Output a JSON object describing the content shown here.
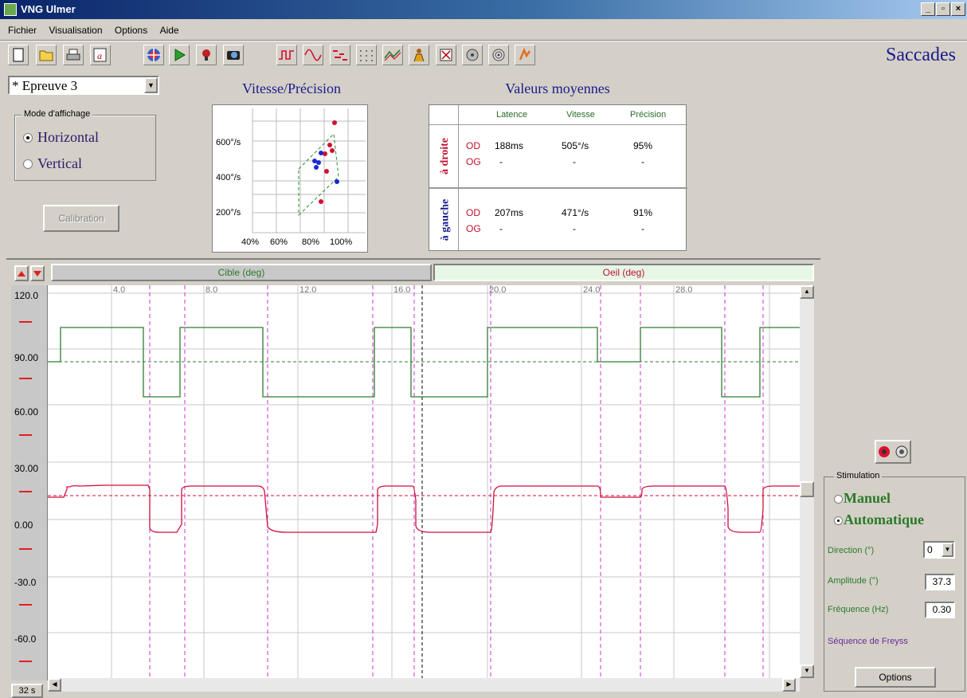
{
  "window": {
    "title": "VNG Ulmer",
    "min": "_",
    "max": "▫",
    "close": "×"
  },
  "menu": [
    "Fichier",
    "Visualisation",
    "Options",
    "Aide"
  ],
  "page_heading": "Saccades",
  "test_select": {
    "value": "* Epreuve 3"
  },
  "display_mode": {
    "legend": "Mode d'affichage",
    "horizontal": "Horizontal",
    "vertical": "Vertical",
    "selected": "horizontal"
  },
  "calibration_button": "Calibration",
  "speed_precision": {
    "title": "Vitesse/Précision",
    "y_ticks": [
      "600°/s",
      "400°/s",
      "200°/s"
    ],
    "x_ticks": [
      "40%",
      "60%",
      "80%",
      "100%"
    ]
  },
  "mean_values": {
    "title": "Valeurs moyennes",
    "headers": [
      "Latence",
      "Vitesse",
      "Précision"
    ],
    "right_label": "à droite",
    "left_label": "à gauche",
    "rows_right": [
      {
        "eye": "OD",
        "latence": "188ms",
        "vitesse": "505°/s",
        "precision": "95%"
      },
      {
        "eye": "OG",
        "latence": "-",
        "vitesse": "-",
        "precision": "-"
      }
    ],
    "rows_left": [
      {
        "eye": "OD",
        "latence": "207ms",
        "vitesse": "471°/s",
        "precision": "91%"
      },
      {
        "eye": "OG",
        "latence": "-",
        "vitesse": "-",
        "precision": "-"
      }
    ]
  },
  "trace_tabs": {
    "target": "Cible (deg)",
    "eye": "Oeil (deg)"
  },
  "trace_axis": {
    "y_labels": [
      "120.0",
      "90.00",
      "60.00",
      "30.00",
      "0.00",
      "-30.0",
      "-60.0"
    ],
    "x_labels": [
      "4.0",
      "8.0",
      "12.0",
      "16.0",
      "20.0",
      "24.0",
      "28.0"
    ],
    "time_window": "32 s"
  },
  "stimulation": {
    "legend": "Stimulation",
    "manual": "Manuel",
    "automatic": "Automatique",
    "selected": "automatique",
    "direction_label": "Direction (°)",
    "direction_value": "0",
    "amplitude_label": "Amplitude (°)",
    "amplitude_value": "37.3",
    "frequency_label": "Fréquence (Hz)",
    "frequency_value": "0.30",
    "sequence_label": "Séquence de Freyss",
    "options_button": "Options"
  },
  "colors": {
    "target": "#2e7d32",
    "eye": "#d0103a",
    "marker": "#cc33cc",
    "heading": "#1a1a8c"
  }
}
